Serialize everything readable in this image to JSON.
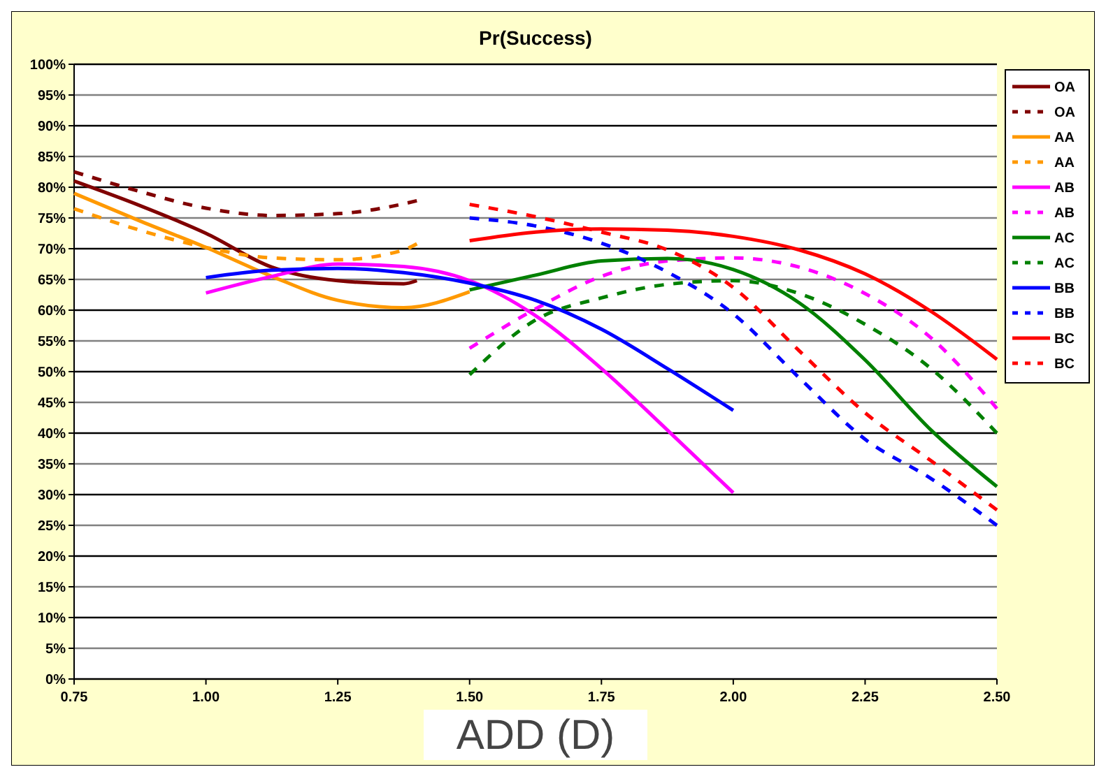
{
  "chart_data": {
    "type": "line",
    "title": "Pr(Success)",
    "xlabel": "ADD (D)",
    "xlim": [
      0.75,
      2.5
    ],
    "xticks": [
      {
        "value": 0.75,
        "label": "0.75"
      },
      {
        "value": 1,
        "label": "1.00"
      },
      {
        "value": 1.25,
        "label": "1.25"
      },
      {
        "value": 1.5,
        "label": "1.50"
      },
      {
        "value": 1.75,
        "label": "1.75"
      },
      {
        "value": 2,
        "label": "2.00"
      },
      {
        "value": 2.25,
        "label": "2.25"
      },
      {
        "value": 2.5,
        "label": "2.50"
      }
    ],
    "ylim": [
      0,
      100
    ],
    "yticks": [
      {
        "value": 0,
        "label": "0%"
      },
      {
        "value": 5,
        "label": "5%"
      },
      {
        "value": 10,
        "label": "10%"
      },
      {
        "value": 15,
        "label": "15%"
      },
      {
        "value": 20,
        "label": "20%"
      },
      {
        "value": 25,
        "label": "25%"
      },
      {
        "value": 30,
        "label": "30%"
      },
      {
        "value": 35,
        "label": "35%"
      },
      {
        "value": 40,
        "label": "40%"
      },
      {
        "value": 45,
        "label": "45%"
      },
      {
        "value": 50,
        "label": "50%"
      },
      {
        "value": 55,
        "label": "55%"
      },
      {
        "value": 60,
        "label": "60%"
      },
      {
        "value": 65,
        "label": "65%"
      },
      {
        "value": 70,
        "label": "70%"
      },
      {
        "value": 75,
        "label": "75%"
      },
      {
        "value": 80,
        "label": "80%"
      },
      {
        "value": 85,
        "label": "85%"
      },
      {
        "value": 90,
        "label": "90%"
      },
      {
        "value": 95,
        "label": "95%"
      },
      {
        "value": 100,
        "label": "100%"
      }
    ],
    "grid": "y",
    "legend": "right",
    "marker": "none",
    "series": [
      {
        "name": "OA",
        "color": "#800000",
        "line_style": "solid",
        "x": [
          0.75,
          0.875,
          1,
          1.125,
          1.25,
          1.375,
          1.4
        ],
        "values": [
          81,
          77,
          72.5,
          67,
          64.8,
          64.3,
          64.8
        ]
      },
      {
        "name": "OA",
        "color": "#800000",
        "line_style": "dashed",
        "x": [
          0.75,
          0.875,
          1,
          1.125,
          1.25,
          1.375,
          1.4
        ],
        "values": [
          82.5,
          79.3,
          76.6,
          75.4,
          75.7,
          77.3,
          77.8
        ]
      },
      {
        "name": "AA",
        "color": "#ff9900",
        "line_style": "solid",
        "x": [
          0.75,
          0.875,
          1,
          1.125,
          1.25,
          1.375,
          1.5
        ],
        "values": [
          79,
          74.5,
          70.2,
          65.5,
          61.6,
          60.4,
          63
        ]
      },
      {
        "name": "AA",
        "color": "#ff9900",
        "line_style": "dashed",
        "x": [
          0.75,
          0.875,
          1,
          1.125,
          1.25,
          1.375,
          1.4
        ],
        "values": [
          76.5,
          73,
          70.2,
          68.5,
          68.2,
          69.8,
          70.8
        ]
      },
      {
        "name": "AB",
        "color": "#ff00ff",
        "line_style": "solid",
        "x": [
          1,
          1.125,
          1.25,
          1.375,
          1.5,
          1.625,
          1.75,
          1.875,
          2
        ],
        "values": [
          62.8,
          65.5,
          67.5,
          67.1,
          64.8,
          59.1,
          50.5,
          40.5,
          30.3
        ]
      },
      {
        "name": "AB",
        "color": "#ff00ff",
        "line_style": "dashed",
        "x": [
          1.5,
          1.625,
          1.75,
          1.875,
          2,
          2.125,
          2.25,
          2.375,
          2.5
        ],
        "values": [
          53.8,
          60.2,
          65.5,
          68,
          68.5,
          67,
          62.7,
          55.5,
          44
        ]
      },
      {
        "name": "AC",
        "color": "#008000",
        "line_style": "solid",
        "x": [
          1.5,
          1.625,
          1.75,
          1.875,
          2,
          2.125,
          2.25,
          2.375,
          2.5
        ],
        "values": [
          63.3,
          65.7,
          68,
          68.4,
          66.6,
          61.2,
          51.9,
          40.5,
          31.3
        ]
      },
      {
        "name": "AC",
        "color": "#008000",
        "line_style": "dashed",
        "x": [
          1.5,
          1.625,
          1.75,
          1.875,
          2,
          2.125,
          2.25,
          2.375,
          2.5
        ],
        "values": [
          49.5,
          58.4,
          62,
          64.2,
          64.8,
          62.7,
          57.7,
          50.5,
          40
        ]
      },
      {
        "name": "BB",
        "color": "#0000ff",
        "line_style": "solid",
        "x": [
          1,
          1.125,
          1.25,
          1.375,
          1.5,
          1.625,
          1.75,
          1.875,
          2
        ],
        "values": [
          65.3,
          66.5,
          66.8,
          66.1,
          64.4,
          61.6,
          56.9,
          50.5,
          43.7
        ]
      },
      {
        "name": "BB",
        "color": "#0000ff",
        "line_style": "dashed",
        "x": [
          1.5,
          1.625,
          1.75,
          1.875,
          2,
          2.125,
          2.25,
          2.375,
          2.5
        ],
        "values": [
          75,
          73.7,
          70.9,
          66.2,
          59.4,
          49,
          39,
          32.6,
          25
        ]
      },
      {
        "name": "BC",
        "color": "#ff0000",
        "line_style": "solid",
        "x": [
          1.5,
          1.625,
          1.75,
          1.875,
          2,
          2.125,
          2.25,
          2.375,
          2.5
        ],
        "values": [
          71.3,
          72.7,
          73.2,
          73,
          72,
          69.8,
          65.9,
          59.8,
          52
        ]
      },
      {
        "name": "BC",
        "color": "#ff0000",
        "line_style": "dashed",
        "x": [
          1.5,
          1.625,
          1.75,
          1.875,
          2,
          2.125,
          2.25,
          2.375,
          2.5
        ],
        "values": [
          77.2,
          75.2,
          72.7,
          69.8,
          63.7,
          53.4,
          43.3,
          35.5,
          27.5
        ]
      }
    ]
  }
}
